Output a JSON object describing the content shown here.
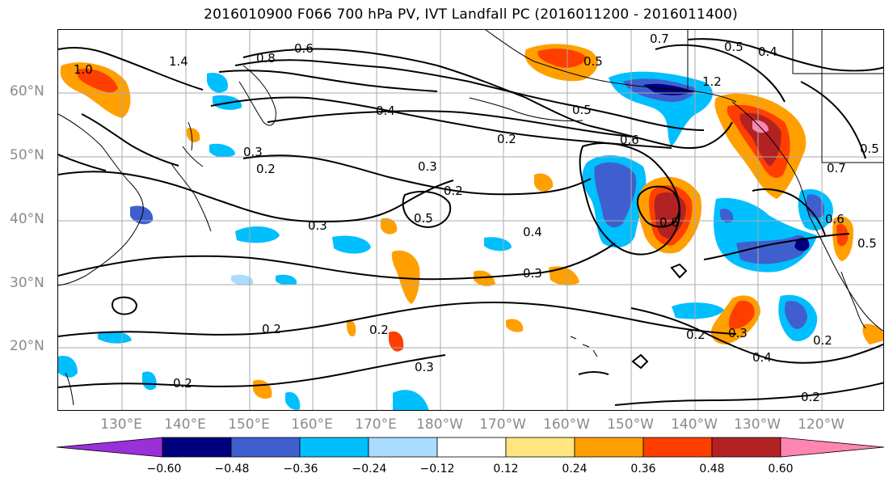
{
  "title": "2016010900 F066 700 hPa PV, IVT Landfall PC (2016011200 - 2016011400)",
  "lat_labels": [
    "60°N",
    "50°N",
    "40°N",
    "30°N",
    "20°N"
  ],
  "lon_labels": [
    "130°E",
    "140°E",
    "150°E",
    "160°E",
    "170°E",
    "180°W",
    "170°W",
    "160°W",
    "150°W",
    "140°W",
    "130°W",
    "120°W"
  ],
  "colorbar": {
    "ticks": [
      "−0.60",
      "−0.48",
      "−0.36",
      "−0.24",
      "−0.12",
      "0.12",
      "0.24",
      "0.36",
      "0.48",
      "0.60"
    ],
    "colors": [
      "#9b30d9",
      "#00007f",
      "#3f5fcf",
      "#00bfff",
      "#aadcff",
      "#ffffff",
      "#ffe680",
      "#ff9f00",
      "#ff3f00",
      "#b22222",
      "#ff85b3"
    ]
  },
  "contour_labels": [
    "0.6",
    "0.8",
    "0.7",
    "0.5",
    "0.4",
    "1.4",
    "1.0",
    "1.2",
    "0.3",
    "0.2",
    "0.4",
    "0.5",
    "0.2",
    "0.5",
    "0.6",
    "0.3",
    "0.2",
    "0.5",
    "0.4",
    "0.3",
    "0.3",
    "0.2",
    "0.2",
    "0.3",
    "0.2",
    "0.3",
    "0.4",
    "0.2",
    "0.2",
    "0.6",
    "0.6",
    "0.5",
    "0.2",
    "0.5",
    "0.7"
  ]
}
